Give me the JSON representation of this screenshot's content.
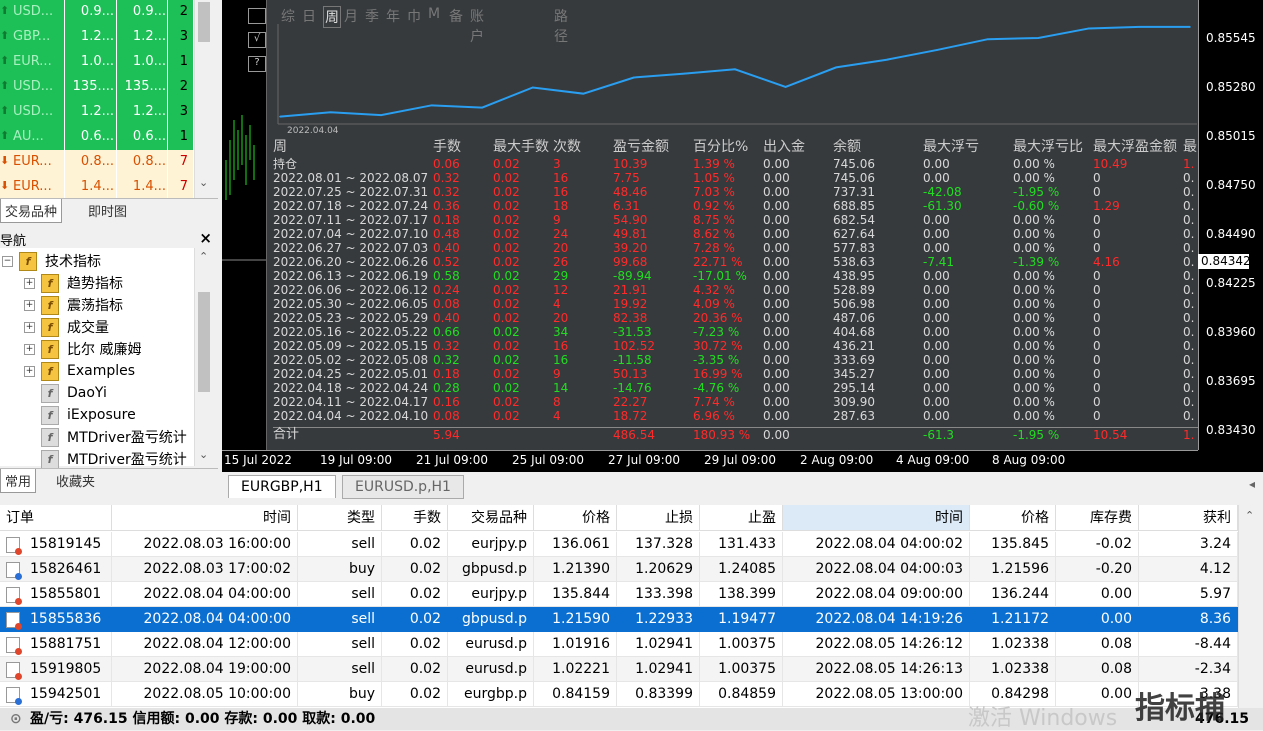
{
  "market_watch": {
    "rows": [
      {
        "symbol": "USD...",
        "bid": "0.9...",
        "ask": "0.9...",
        "spread": "2",
        "dir": "up"
      },
      {
        "symbol": "GBP...",
        "bid": "1.2...",
        "ask": "1.2...",
        "spread": "3",
        "dir": "up"
      },
      {
        "symbol": "EUR...",
        "bid": "1.0...",
        "ask": "1.0...",
        "spread": "1",
        "dir": "up"
      },
      {
        "symbol": "USD...",
        "bid": "135....",
        "ask": "135....",
        "spread": "2",
        "dir": "up"
      },
      {
        "symbol": "USD...",
        "bid": "1.2...",
        "ask": "1.2...",
        "spread": "3",
        "dir": "up"
      },
      {
        "symbol": "AU...",
        "bid": "0.6...",
        "ask": "0.6...",
        "spread": "1",
        "dir": "up"
      },
      {
        "symbol": "EUR...",
        "bid": "0.8...",
        "ask": "0.8...",
        "spread": "7",
        "dir": "down"
      },
      {
        "symbol": "EUR...",
        "bid": "1.4...",
        "ask": "1.4...",
        "spread": "7",
        "dir": "down"
      }
    ],
    "tabs": [
      "交易品种",
      "即时图"
    ]
  },
  "navigator": {
    "title": "导航",
    "close": "×",
    "items": [
      {
        "label": "技术指标",
        "level": 0,
        "exp": "−",
        "gray": false
      },
      {
        "label": "趋势指标",
        "level": 1,
        "exp": "+",
        "gray": false
      },
      {
        "label": "震荡指标",
        "level": 1,
        "exp": "+",
        "gray": false
      },
      {
        "label": "成交量",
        "level": 1,
        "exp": "+",
        "gray": false
      },
      {
        "label": "比尔 威廉姆",
        "level": 1,
        "exp": "+",
        "gray": false
      },
      {
        "label": "Examples",
        "level": 1,
        "exp": "+",
        "gray": false
      },
      {
        "label": "DaoYi",
        "level": 1,
        "exp": "",
        "gray": true
      },
      {
        "label": "iExposure",
        "level": 1,
        "exp": "",
        "gray": true
      },
      {
        "label": "MTDriver盈亏统计",
        "level": 1,
        "exp": "",
        "gray": true
      },
      {
        "label": "MTDriver盈亏统计",
        "level": 1,
        "exp": "",
        "gray": true
      }
    ],
    "tabs": [
      "常用",
      "收藏夹"
    ]
  },
  "chart": {
    "toolbar_buttons": [
      "综",
      "日",
      "周",
      "月",
      "季",
      "年",
      "巾",
      "M",
      "备",
      "账户",
      "路径"
    ],
    "equity_label": "2022.04.04",
    "price_ticks": [
      "0.85545",
      "0.85280",
      "0.85015",
      "0.84750",
      "0.84490",
      "0.84225",
      "0.83960",
      "0.83695",
      "0.83430"
    ],
    "current_price": "0.84342",
    "time_ticks": [
      "15 Jul 2022",
      "19 Jul 09:00",
      "21 Jul 09:00",
      "25 Jul 09:00",
      "27 Jul 09:00",
      "29 Jul 09:00",
      "2 Aug 09:00",
      "4 Aug 09:00",
      "8 Aug 09:00"
    ],
    "columns": [
      "周",
      "手数",
      "最大手数",
      "次数",
      "盈亏金额",
      "百分比%",
      "出入金",
      "余额",
      "最大浮亏",
      "最大浮亏比",
      "最大浮盈金额",
      "最"
    ],
    "rows": [
      [
        "持仓",
        "0.06",
        "0.02",
        "3",
        "10.39",
        "1.39 %",
        "0.00",
        "745.06",
        "0.00",
        "0.00 %",
        "10.49",
        "1."
      ],
      [
        "2022.08.01 ~ 2022.08.07",
        "0.32",
        "0.02",
        "16",
        "7.75",
        "1.05 %",
        "0.00",
        "745.06",
        "0.00",
        "0.00 %",
        "0",
        "0."
      ],
      [
        "2022.07.25 ~ 2022.07.31",
        "0.32",
        "0.02",
        "16",
        "48.46",
        "7.03 %",
        "0.00",
        "737.31",
        "-42.08",
        "-1.95 %",
        "0",
        "0."
      ],
      [
        "2022.07.18 ~ 2022.07.24",
        "0.36",
        "0.02",
        "18",
        "6.31",
        "0.92 %",
        "0.00",
        "688.85",
        "-61.30",
        "-0.60 %",
        "1.29",
        "0."
      ],
      [
        "2022.07.11 ~ 2022.07.17",
        "0.18",
        "0.02",
        "9",
        "54.90",
        "8.75 %",
        "0.00",
        "682.54",
        "0.00",
        "0.00 %",
        "0",
        "0."
      ],
      [
        "2022.07.04 ~ 2022.07.10",
        "0.48",
        "0.02",
        "24",
        "49.81",
        "8.62 %",
        "0.00",
        "627.64",
        "0.00",
        "0.00 %",
        "0",
        "0."
      ],
      [
        "2022.06.27 ~ 2022.07.03",
        "0.40",
        "0.02",
        "20",
        "39.20",
        "7.28 %",
        "0.00",
        "577.83",
        "0.00",
        "0.00 %",
        "0",
        "0."
      ],
      [
        "2022.06.20 ~ 2022.06.26",
        "0.52",
        "0.02",
        "26",
        "99.68",
        "22.71 %",
        "0.00",
        "538.63",
        "-7.41",
        "-1.39 %",
        "4.16",
        "0."
      ],
      [
        "2022.06.13 ~ 2022.06.19",
        "0.58",
        "0.02",
        "29",
        "-89.94",
        "-17.01 %",
        "0.00",
        "438.95",
        "0.00",
        "0.00 %",
        "0",
        "0."
      ],
      [
        "2022.06.06 ~ 2022.06.12",
        "0.24",
        "0.02",
        "12",
        "21.91",
        "4.32 %",
        "0.00",
        "528.89",
        "0.00",
        "0.00 %",
        "0",
        "0."
      ],
      [
        "2022.05.30 ~ 2022.06.05",
        "0.08",
        "0.02",
        "4",
        "19.92",
        "4.09 %",
        "0.00",
        "506.98",
        "0.00",
        "0.00 %",
        "0",
        "0."
      ],
      [
        "2022.05.23 ~ 2022.05.29",
        "0.40",
        "0.02",
        "20",
        "82.38",
        "20.36 %",
        "0.00",
        "487.06",
        "0.00",
        "0.00 %",
        "0",
        "0."
      ],
      [
        "2022.05.16 ~ 2022.05.22",
        "0.66",
        "0.02",
        "34",
        "-31.53",
        "-7.23 %",
        "0.00",
        "404.68",
        "0.00",
        "0.00 %",
        "0",
        "0."
      ],
      [
        "2022.05.09 ~ 2022.05.15",
        "0.32",
        "0.02",
        "16",
        "102.52",
        "30.72 %",
        "0.00",
        "436.21",
        "0.00",
        "0.00 %",
        "0",
        "0."
      ],
      [
        "2022.05.02 ~ 2022.05.08",
        "0.32",
        "0.02",
        "16",
        "-11.58",
        "-3.35 %",
        "0.00",
        "333.69",
        "0.00",
        "0.00 %",
        "0",
        "0."
      ],
      [
        "2022.04.25 ~ 2022.05.01",
        "0.18",
        "0.02",
        "9",
        "50.13",
        "16.99 %",
        "0.00",
        "345.27",
        "0.00",
        "0.00 %",
        "0",
        "0."
      ],
      [
        "2022.04.18 ~ 2022.04.24",
        "0.28",
        "0.02",
        "14",
        "-14.76",
        "-4.76 %",
        "0.00",
        "295.14",
        "0.00",
        "0.00 %",
        "0",
        "0."
      ],
      [
        "2022.04.11 ~ 2022.04.17",
        "0.16",
        "0.02",
        "8",
        "22.27",
        "7.74 %",
        "0.00",
        "309.90",
        "0.00",
        "0.00 %",
        "0",
        "0."
      ],
      [
        "2022.04.04 ~ 2022.04.10",
        "0.08",
        "0.02",
        "4",
        "18.72",
        "6.96 %",
        "0.00",
        "287.63",
        "0.00",
        "0.00 %",
        "0",
        "0."
      ]
    ],
    "total": [
      "合计",
      "5.94",
      "",
      "",
      "486.54",
      "180.93 %",
      "0.00",
      "",
      "-61.3",
      "-1.95 %",
      "10.54",
      "1."
    ],
    "colors": {
      "positive": "#ff2a2a",
      "negative": "#22dd22",
      "neutral": "#d8d8d8",
      "equity_line": "#2a9ef0"
    }
  },
  "chart_data": {
    "type": "line",
    "title": "",
    "series": [
      {
        "values": [
          287.63,
          309.9,
          295.14,
          345.27,
          333.69,
          436.21,
          404.68,
          487.06,
          506.98,
          528.89,
          438.95,
          538.63,
          577.83,
          627.64,
          682.54,
          688.85,
          737.31,
          745.06,
          745.06
        ]
      }
    ]
  },
  "chart_tabs": [
    "EURGBP,H1",
    "EURUSD.p,H1"
  ],
  "trades": {
    "columns": [
      "订单",
      "时间",
      "类型",
      "手数",
      "交易品种",
      "价格",
      "止损",
      "止盈",
      "时间",
      "价格",
      "库存费",
      "获利"
    ],
    "rows": [
      {
        "order": "15819145",
        "time": "2022.08.03 16:00:00",
        "type": "sell",
        "lots": "0.02",
        "symbol": "eurjpy.p",
        "price": "136.061",
        "sl": "137.328",
        "tp": "131.433",
        "close_time": "2022.08.04 04:00:02",
        "close_price": "135.845",
        "swap": "-0.02",
        "profit": "3.24"
      },
      {
        "order": "15826461",
        "time": "2022.08.03 17:00:02",
        "type": "buy",
        "lots": "0.02",
        "symbol": "gbpusd.p",
        "price": "1.21390",
        "sl": "1.20629",
        "tp": "1.24085",
        "close_time": "2022.08.04 04:00:03",
        "close_price": "1.21596",
        "swap": "-0.20",
        "profit": "4.12"
      },
      {
        "order": "15855801",
        "time": "2022.08.04 04:00:00",
        "type": "sell",
        "lots": "0.02",
        "symbol": "eurjpy.p",
        "price": "135.844",
        "sl": "133.398",
        "tp": "138.399",
        "close_time": "2022.08.04 09:00:00",
        "close_price": "136.244",
        "swap": "0.00",
        "profit": "5.97"
      },
      {
        "order": "15855836",
        "time": "2022.08.04 04:00:00",
        "type": "sell",
        "lots": "0.02",
        "symbol": "gbpusd.p",
        "price": "1.21590",
        "sl": "1.22933",
        "tp": "1.19477",
        "close_time": "2022.08.04 14:19:26",
        "close_price": "1.21172",
        "swap": "0.00",
        "profit": "8.36"
      },
      {
        "order": "15881751",
        "time": "2022.08.04 12:00:00",
        "type": "sell",
        "lots": "0.02",
        "symbol": "eurusd.p",
        "price": "1.01916",
        "sl": "1.02941",
        "tp": "1.00375",
        "close_time": "2022.08.05 14:26:12",
        "close_price": "1.02338",
        "swap": "0.08",
        "profit": "-8.44"
      },
      {
        "order": "15919805",
        "time": "2022.08.04 19:00:00",
        "type": "sell",
        "lots": "0.02",
        "symbol": "eurusd.p",
        "price": "1.02221",
        "sl": "1.02941",
        "tp": "1.00375",
        "close_time": "2022.08.05 14:26:13",
        "close_price": "1.02338",
        "swap": "0.08",
        "profit": "-2.34"
      },
      {
        "order": "15942501",
        "time": "2022.08.05 10:00:00",
        "type": "buy",
        "lots": "0.02",
        "symbol": "eurgbp.p",
        "price": "0.84159",
        "sl": "0.83399",
        "tp": "0.84859",
        "close_time": "2022.08.05 13:00:00",
        "close_price": "0.84298",
        "swap": "0.00",
        "profit": "3.38"
      }
    ],
    "summary": "盈/亏: 476.15  信用额: 0.00  存款: 0.00  取款: 0.00",
    "summary_total": "476.15"
  },
  "watermark": "激活 Windows",
  "logo_text": "指标捕"
}
